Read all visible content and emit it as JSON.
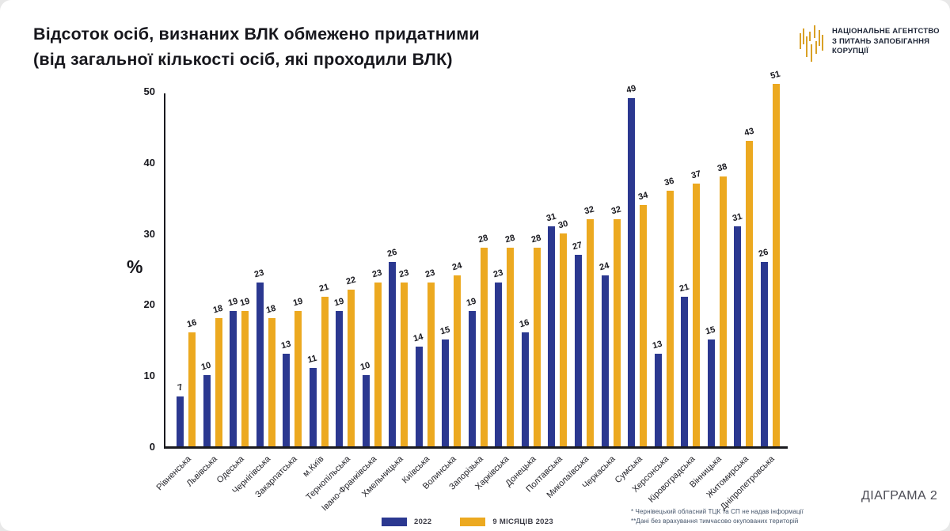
{
  "title": {
    "line1": "Відсоток осіб, визнаних ВЛК обмежено придатними",
    "line2": "(від загальної кількості осіб, які проходили ВЛК)"
  },
  "logo": {
    "line1": "НАЦІОНАЛЬНЕ АГЕНТСТВО",
    "line2": "З ПИТАНЬ ЗАПОБІГАННЯ",
    "line3": "КОРУПЦІЇ",
    "mark_color": "#D9A126"
  },
  "chart_data": {
    "type": "bar",
    "title": "Відсоток осіб, визнаних ВЛК обмежено придатними (від загальної кількості осіб, які проходили ВЛК)",
    "ylabel": "%",
    "ylim": [
      0,
      50
    ],
    "yticks": [
      0,
      10,
      20,
      30,
      40,
      50
    ],
    "grid": false,
    "legend_position": "bottom",
    "categories": [
      "Рівненська",
      "Львівська",
      "Одеська",
      "Чернігівська",
      "Закарпатська",
      "м.Київ",
      "Тернопільська",
      "Івано-Франківська",
      "Хмельницька",
      "Київська",
      "Волинська",
      "Запорізька",
      "Харківська",
      "Донецька",
      "Полтавська",
      "Миколаївська",
      "Черкаська",
      "Сумська",
      "Херсонська",
      "Кіровоградська",
      "Вінницька",
      "Житомирська",
      "Дніпропетровська"
    ],
    "series": [
      {
        "name": "2022",
        "color": "#2B3890",
        "values": [
          7,
          10,
          19,
          23,
          13,
          11,
          19,
          10,
          26,
          14,
          15,
          19,
          23,
          16,
          31,
          27,
          24,
          49,
          13,
          21,
          15,
          31,
          26
        ]
      },
      {
        "name": "9 місяців 2023",
        "color": "#ECA920",
        "values": [
          16,
          18,
          19,
          18,
          19,
          21,
          22,
          23,
          23,
          23,
          24,
          28,
          28,
          28,
          30,
          32,
          32,
          34,
          36,
          37,
          38,
          43,
          51
        ]
      }
    ]
  },
  "footnotes": [
    "* Чернівецький обласний ТЦК та СП не надав інформації",
    "**Дані без врахування тимчасово окупованих територій"
  ],
  "badge": "ДІАГРАМА 2"
}
